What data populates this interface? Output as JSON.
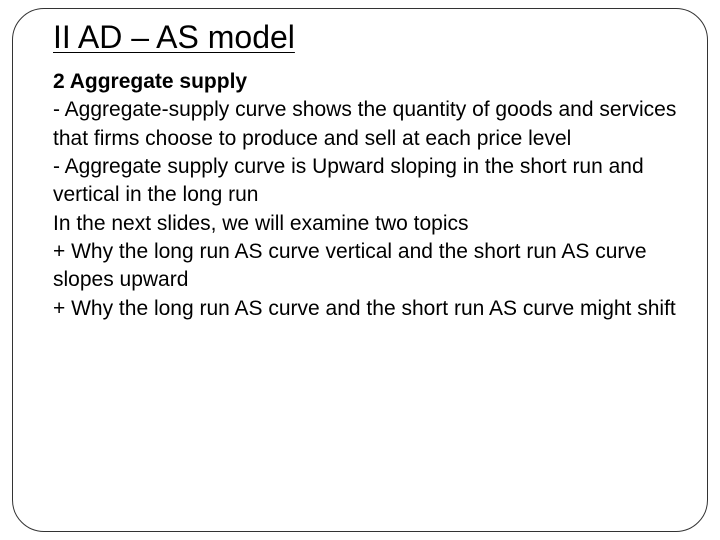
{
  "slide": {
    "title": "II AD – AS model",
    "subtitle": "2 Aggregate supply",
    "paragraphs": [
      "- Aggregate-supply curve shows the quantity of goods and services that firms choose to produce and sell at each price level",
      "- Aggregate supply curve is Upward sloping in the short run and vertical in the long run",
      "In the next slides, we will examine two topics",
      "+ Why the long run AS curve vertical and the short run AS curve slopes upward",
      "+ Why the long run AS curve and the short run AS curve might shift"
    ],
    "colors": {
      "background": "#ffffff",
      "text": "#000000",
      "border": "#333333"
    },
    "typography": {
      "title_fontsize": 32,
      "subtitle_fontsize": 21,
      "body_fontsize": 21,
      "font_family": "Arial"
    }
  }
}
